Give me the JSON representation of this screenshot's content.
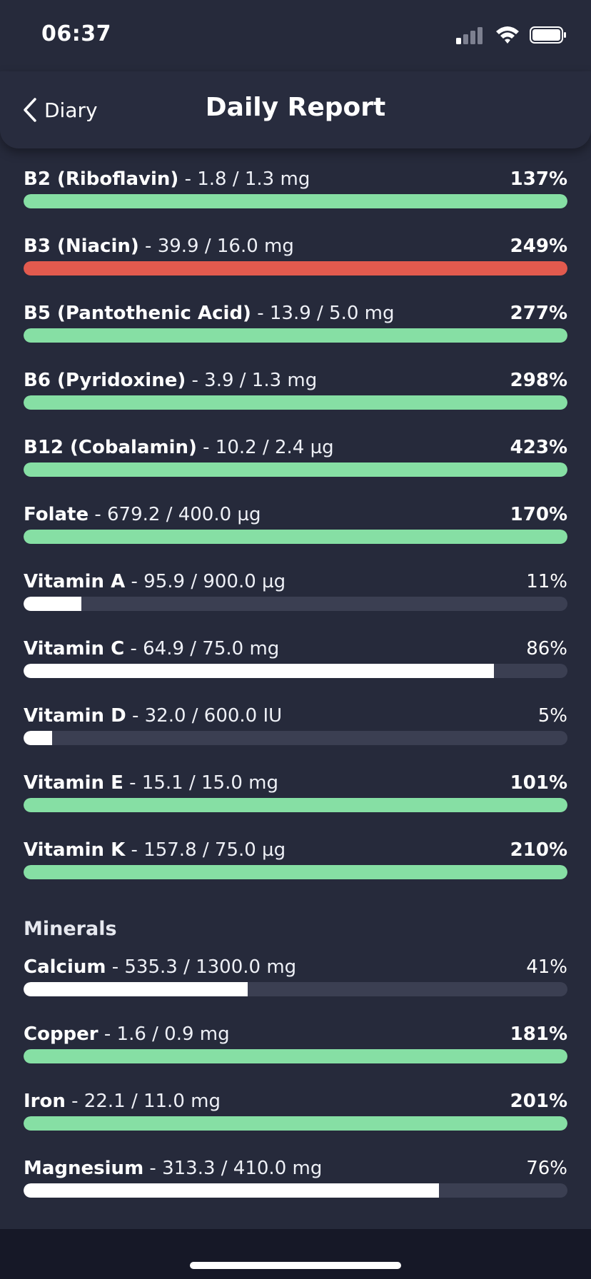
{
  "status_bar": {
    "time": "06:37",
    "signal_icon": "cellular-signal-icon",
    "wifi_icon": "wifi-icon",
    "battery_icon": "battery-icon"
  },
  "nav": {
    "back_label": "Diary",
    "back_icon": "chevron-left-icon",
    "title": "Daily Report"
  },
  "colors": {
    "background": "#262a3b",
    "over_limit": "#e25a4e",
    "met": "#86dfa4",
    "partial": "#ffffff",
    "track": "#3b3f52"
  },
  "vitamins": [
    {
      "name": "B2 (Riboflavin)",
      "amount": " - 1.8 / 1.3 mg",
      "percent": "137%",
      "fraction": 1.0,
      "status": "met"
    },
    {
      "name": "B3 (Niacin)",
      "amount": " - 39.9 / 16.0 mg",
      "percent": "249%",
      "fraction": 1.0,
      "status": "over_limit"
    },
    {
      "name": "B5 (Pantothenic Acid)",
      "amount": " - 13.9 / 5.0 mg",
      "percent": "277%",
      "fraction": 1.0,
      "status": "met"
    },
    {
      "name": "B6 (Pyridoxine)",
      "amount": " - 3.9 / 1.3 mg",
      "percent": "298%",
      "fraction": 1.0,
      "status": "met"
    },
    {
      "name": "B12 (Cobalamin)",
      "amount": " - 10.2 / 2.4 µg",
      "percent": "423%",
      "fraction": 1.0,
      "status": "met"
    },
    {
      "name": "Folate",
      "amount": " - 679.2 / 400.0 µg",
      "percent": "170%",
      "fraction": 1.0,
      "status": "met"
    },
    {
      "name": "Vitamin A",
      "amount": " - 95.9 / 900.0 µg",
      "percent": "11%",
      "fraction": 0.106,
      "status": "partial"
    },
    {
      "name": "Vitamin C",
      "amount": " - 64.9 / 75.0 mg",
      "percent": "86%",
      "fraction": 0.865,
      "status": "partial"
    },
    {
      "name": "Vitamin D",
      "amount": " - 32.0 / 600.0 IU",
      "percent": "5%",
      "fraction": 0.053,
      "status": "partial"
    },
    {
      "name": "Vitamin E",
      "amount": " - 15.1 / 15.0 mg",
      "percent": "101%",
      "fraction": 1.0,
      "status": "met"
    },
    {
      "name": "Vitamin K",
      "amount": " - 157.8 / 75.0 µg",
      "percent": "210%",
      "fraction": 1.0,
      "status": "met"
    }
  ],
  "minerals_title": "Minerals",
  "minerals": [
    {
      "name": "Calcium",
      "amount": " - 535.3 / 1300.0 mg",
      "percent": "41%",
      "fraction": 0.412,
      "status": "partial"
    },
    {
      "name": "Copper",
      "amount": " - 1.6 / 0.9 mg",
      "percent": "181%",
      "fraction": 1.0,
      "status": "met"
    },
    {
      "name": "Iron",
      "amount": " - 22.1 / 11.0 mg",
      "percent": "201%",
      "fraction": 1.0,
      "status": "met"
    },
    {
      "name": "Magnesium",
      "amount": " - 313.3 / 410.0 mg",
      "percent": "76%",
      "fraction": 0.764,
      "status": "partial"
    }
  ]
}
